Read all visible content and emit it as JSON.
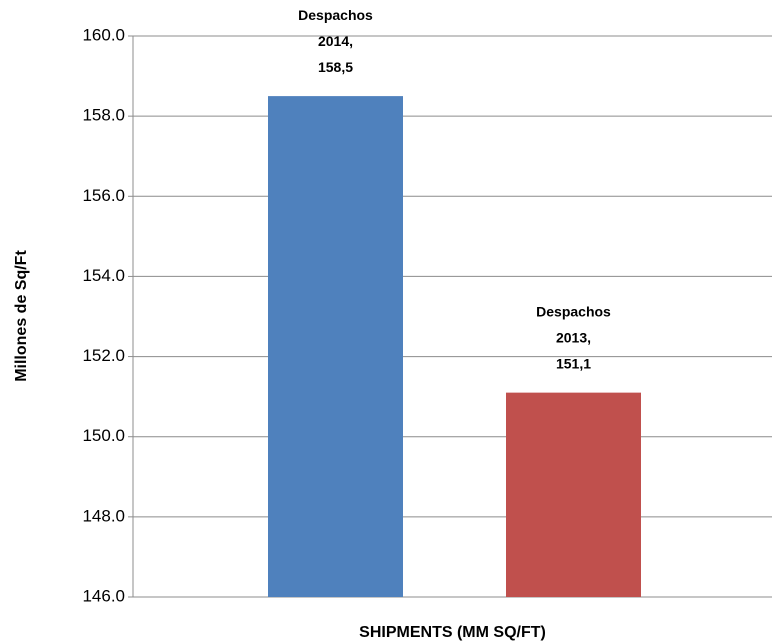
{
  "chart_data": {
    "type": "bar",
    "categories": [
      "SHIPMENTS (MM SQ/FT)"
    ],
    "y_label": "Millones de  Sq/Ft",
    "series": [
      {
        "name": "Despachos 2014",
        "color": "#4f81bd",
        "values": [
          158.5
        ],
        "value_labels": [
          "Despachos 2014, 158,5"
        ]
      },
      {
        "name": "Despachos 2013",
        "color": "#c0504d",
        "values": [
          151.1
        ],
        "value_labels": [
          "Despachos 2013, 151,1"
        ]
      }
    ],
    "ylim": [
      146,
      160
    ],
    "yticks": [
      {
        "value": 146,
        "label": "146.0"
      },
      {
        "value": 148,
        "label": "148.0"
      },
      {
        "value": 150,
        "label": "150.0"
      },
      {
        "value": 152,
        "label": "152.0"
      },
      {
        "value": 154,
        "label": "154.0"
      },
      {
        "value": 156,
        "label": "156.0"
      },
      {
        "value": 158,
        "label": "158.0"
      },
      {
        "value": 160,
        "label": "160.0"
      }
    ],
    "grid": true,
    "legend": false
  }
}
